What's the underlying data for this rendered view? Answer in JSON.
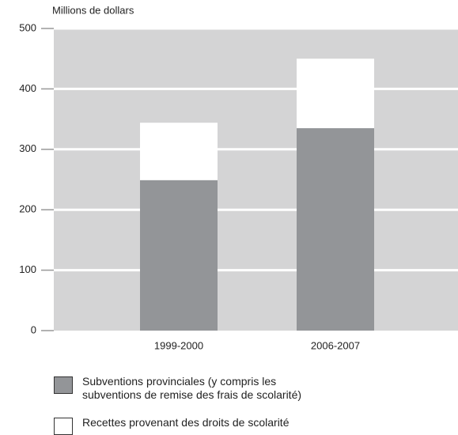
{
  "chart_data": {
    "type": "stacked_bar",
    "y_axis_label": "Millions de dollars",
    "categories": [
      "1999-2000",
      "2006-2007"
    ],
    "series": [
      {
        "name": "Subventions provinciales (y compris les subventions de remise des frais de scolarité)",
        "color": "#939598",
        "values": [
          249,
          335
        ]
      },
      {
        "name": "Recettes provenant des droits de scolarité",
        "color": "#ffffff",
        "values": [
          95,
          115
        ]
      }
    ],
    "ylim": [
      0,
      500
    ],
    "yticks": [
      0,
      100,
      200,
      300,
      400,
      500
    ],
    "grid": true
  }
}
